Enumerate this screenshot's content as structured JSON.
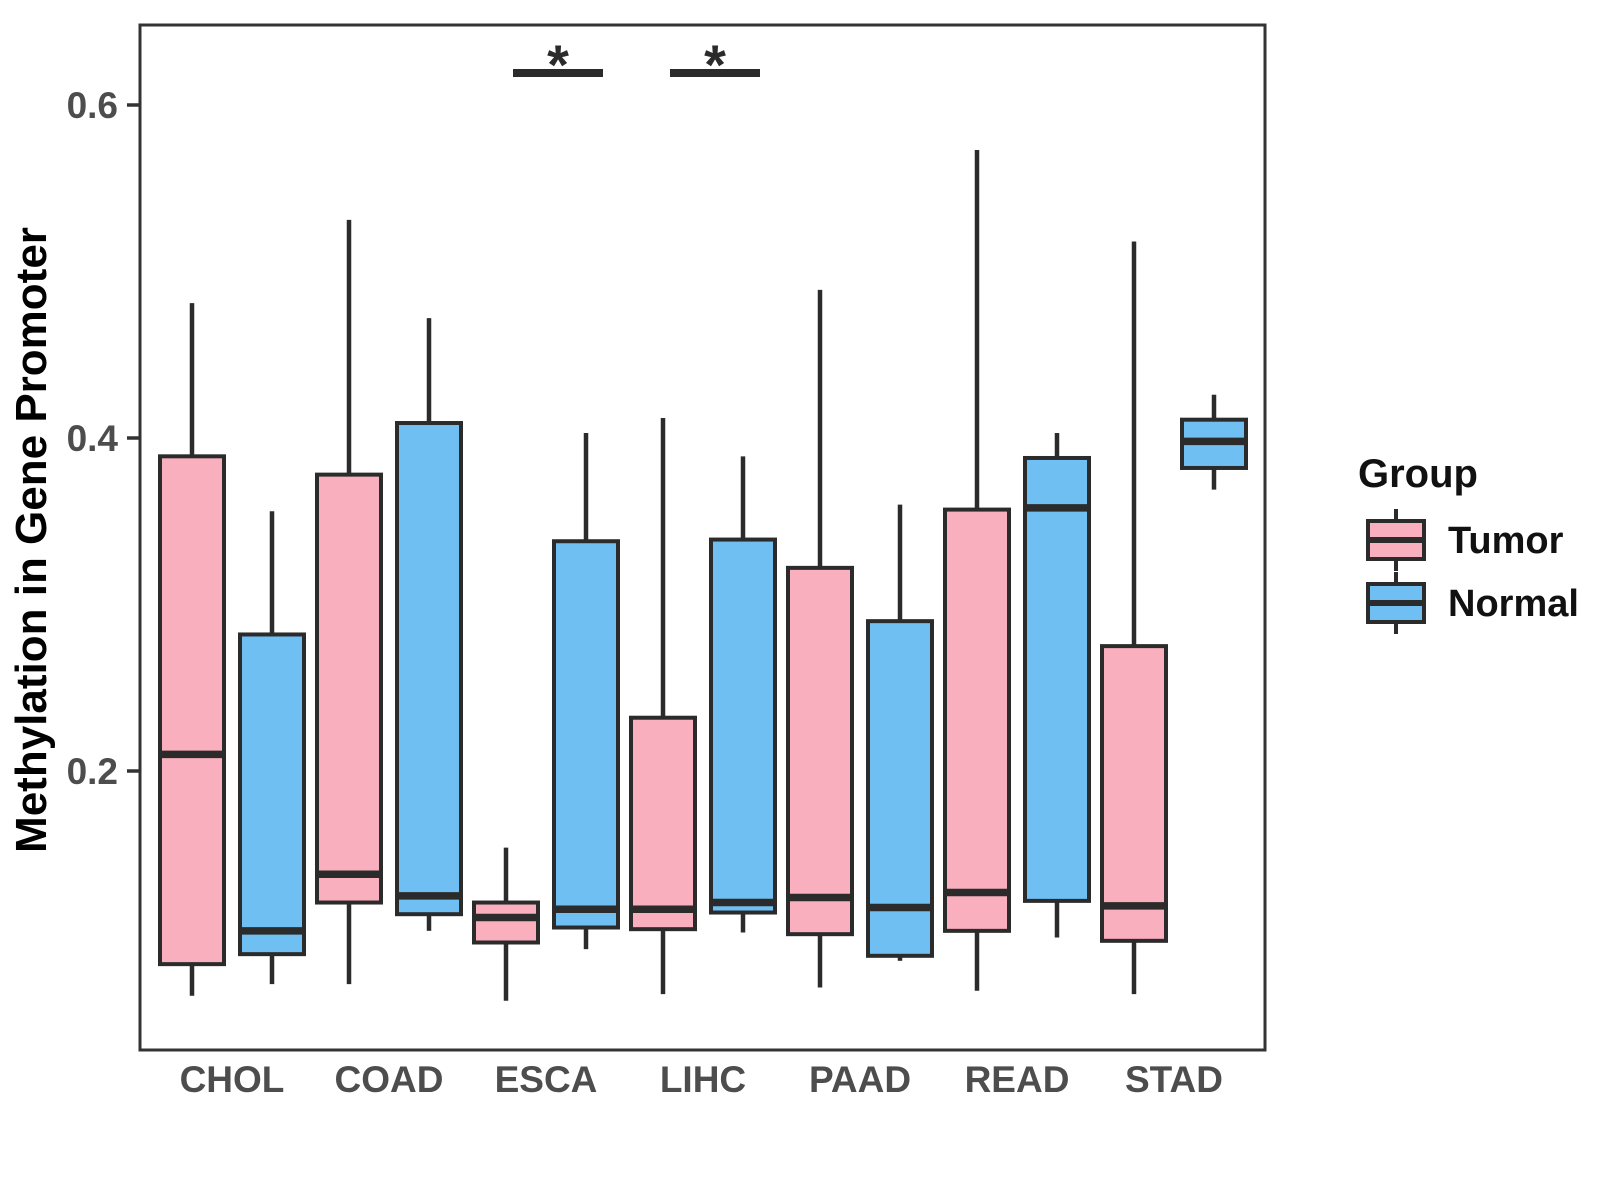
{
  "figure": {
    "ylabel": "Methylation in Gene Promoter",
    "xlabel": "",
    "title": ""
  },
  "legend": {
    "title": "Group",
    "items": [
      {
        "label": "Tumor",
        "color": "#F9AFBD"
      },
      {
        "label": "Normal",
        "color": "#6FBFF3"
      }
    ]
  },
  "style": {
    "line_color": "#2B2B2B",
    "panel_border_color": "#333333",
    "tick_label_color": "#4D4D4D",
    "axis_title_color": "#000000",
    "legend_text_color": "#111111",
    "background": "#FFFFFF"
  },
  "chart_data": {
    "type": "boxplot",
    "title": "",
    "xlabel": "",
    "ylabel": "Methylation in Gene Promoter",
    "categories": [
      "CHOL",
      "COAD",
      "ESCA",
      "LIHC",
      "PAAD",
      "READ",
      "STAD"
    ],
    "y_ticks": [
      0.2,
      0.4,
      0.6
    ],
    "ylim": [
      0.03,
      0.65
    ],
    "grid": false,
    "legend_position": "right",
    "series": [
      {
        "name": "Tumor",
        "color": "#F9AFBD",
        "boxes": [
          {
            "category": "CHOL",
            "whisker_low": 0.065,
            "q1": 0.084,
            "median": 0.21,
            "q3": 0.389,
            "whisker_high": 0.481
          },
          {
            "category": "COAD",
            "whisker_low": 0.072,
            "q1": 0.121,
            "median": 0.138,
            "q3": 0.378,
            "whisker_high": 0.531
          },
          {
            "category": "ESCA",
            "whisker_low": 0.062,
            "q1": 0.097,
            "median": 0.112,
            "q3": 0.121,
            "whisker_high": 0.154
          },
          {
            "category": "LIHC",
            "whisker_low": 0.066,
            "q1": 0.105,
            "median": 0.117,
            "q3": 0.232,
            "whisker_high": 0.412
          },
          {
            "category": "PAAD",
            "whisker_low": 0.07,
            "q1": 0.102,
            "median": 0.124,
            "q3": 0.322,
            "whisker_high": 0.489
          },
          {
            "category": "READ",
            "whisker_low": 0.068,
            "q1": 0.104,
            "median": 0.127,
            "q3": 0.357,
            "whisker_high": 0.573
          },
          {
            "category": "STAD",
            "whisker_low": 0.066,
            "q1": 0.098,
            "median": 0.119,
            "q3": 0.275,
            "whisker_high": 0.518
          }
        ]
      },
      {
        "name": "Normal",
        "color": "#6FBFF3",
        "boxes": [
          {
            "category": "CHOL",
            "whisker_low": 0.072,
            "q1": 0.09,
            "median": 0.104,
            "q3": 0.282,
            "whisker_high": 0.356
          },
          {
            "category": "COAD",
            "whisker_low": 0.104,
            "q1": 0.114,
            "median": 0.125,
            "q3": 0.409,
            "whisker_high": 0.472
          },
          {
            "category": "ESCA",
            "whisker_low": 0.093,
            "q1": 0.106,
            "median": 0.117,
            "q3": 0.338,
            "whisker_high": 0.403
          },
          {
            "category": "LIHC",
            "whisker_low": 0.103,
            "q1": 0.115,
            "median": 0.121,
            "q3": 0.339,
            "whisker_high": 0.389
          },
          {
            "category": "PAAD",
            "whisker_low": 0.086,
            "q1": 0.089,
            "median": 0.118,
            "q3": 0.29,
            "whisker_high": 0.36
          },
          {
            "category": "READ",
            "whisker_low": 0.1,
            "q1": 0.122,
            "median": 0.358,
            "q3": 0.388,
            "whisker_high": 0.403
          },
          {
            "category": "STAD",
            "whisker_low": 0.369,
            "q1": 0.382,
            "median": 0.398,
            "q3": 0.411,
            "whisker_high": 0.426
          }
        ]
      }
    ],
    "significance": [
      {
        "category": "ESCA",
        "label": "*"
      },
      {
        "category": "LIHC",
        "label": "*"
      }
    ]
  }
}
